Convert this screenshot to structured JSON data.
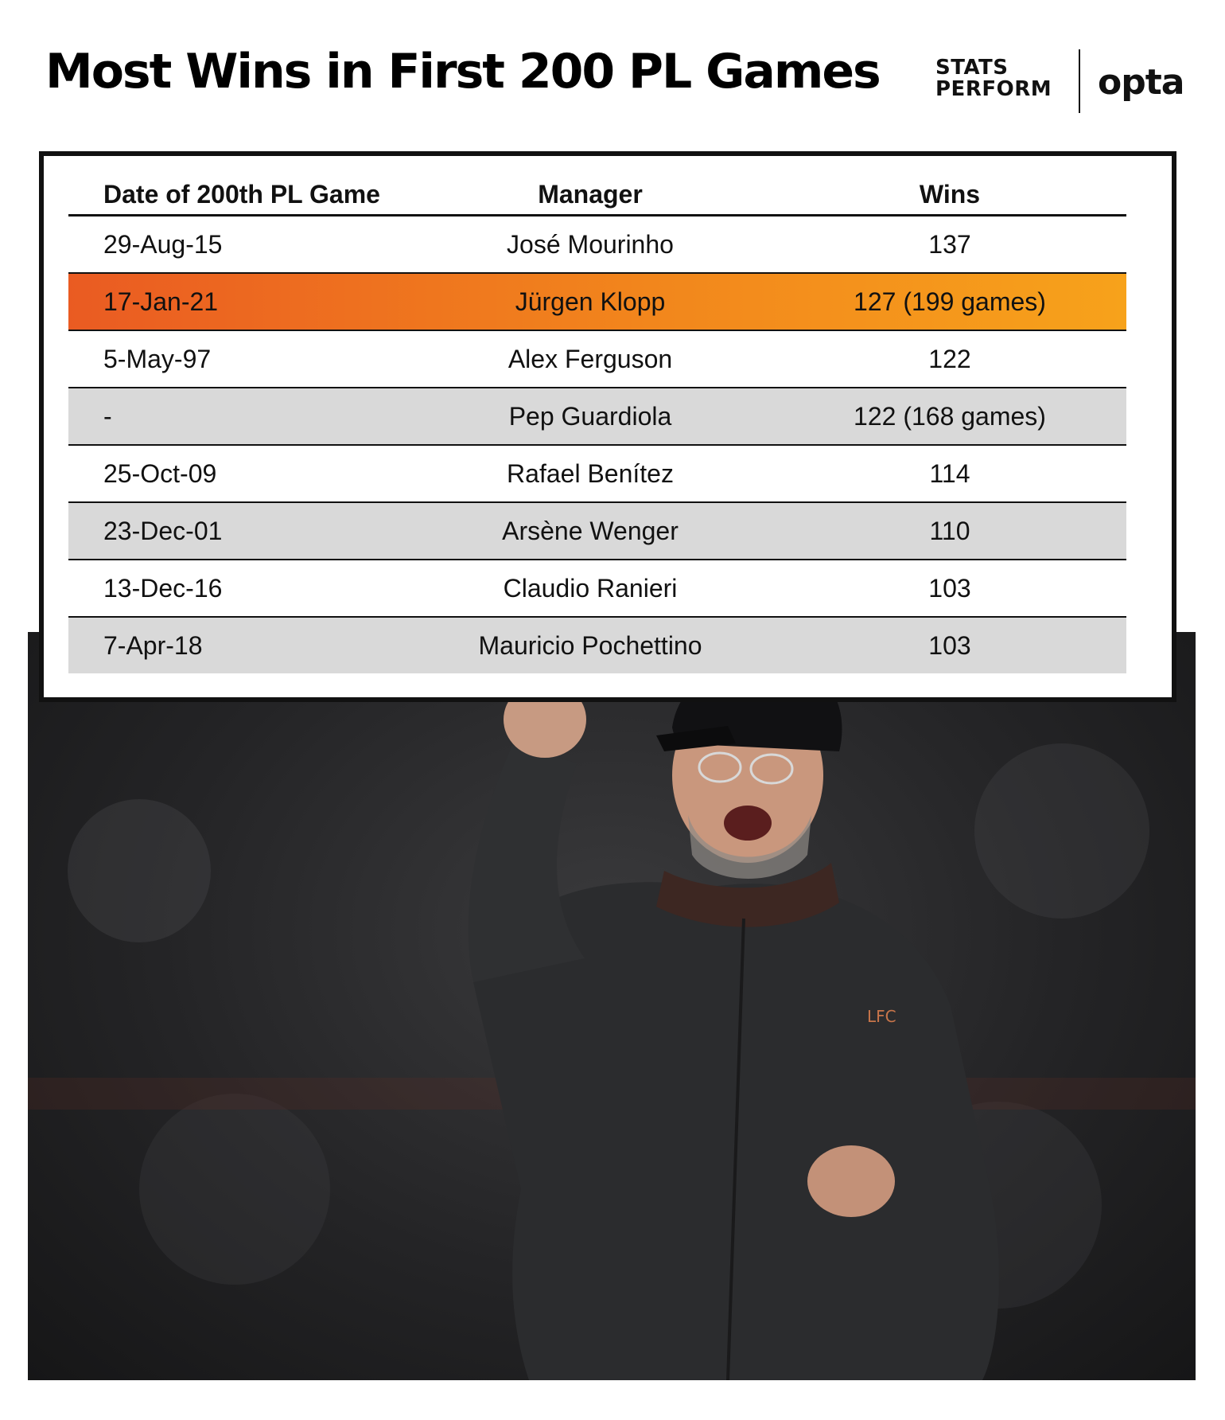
{
  "title": "Most Wins in First 200 PL Games",
  "logos": {
    "stats_perform_line1": "STATS",
    "stats_perform_line2": "PERFORM",
    "opta": "opta"
  },
  "colors": {
    "highlight_start": "#ea5b22",
    "highlight_end": "#f7a21b",
    "shaded_row": "#d9d9d9"
  },
  "chart_data": {
    "type": "table",
    "columns": [
      "Date of 200th PL Game",
      "Manager",
      "Wins"
    ],
    "rows": [
      {
        "date": "29-Aug-15",
        "manager": "José Mourinho",
        "wins": "137",
        "style": "plain"
      },
      {
        "date": "17-Jan-21",
        "manager": "Jürgen Klopp",
        "wins": "127 (199 games)",
        "style": "highlight"
      },
      {
        "date": "5-May-97",
        "manager": "Alex Ferguson",
        "wins": "122",
        "style": "plain"
      },
      {
        "date": "-",
        "manager": "Pep Guardiola",
        "wins": "122 (168 games)",
        "style": "shaded"
      },
      {
        "date": "25-Oct-09",
        "manager": "Rafael Benítez",
        "wins": "114",
        "style": "plain"
      },
      {
        "date": "23-Dec-01",
        "manager": "Arsène Wenger",
        "wins": "110",
        "style": "shaded"
      },
      {
        "date": "13-Dec-16",
        "manager": "Claudio Ranieri",
        "wins": "103",
        "style": "plain"
      },
      {
        "date": "7-Apr-18",
        "manager": "Mauricio Pochettino",
        "wins": "103",
        "style": "shaded"
      }
    ]
  },
  "photo": {
    "badge_text": "LFC"
  }
}
